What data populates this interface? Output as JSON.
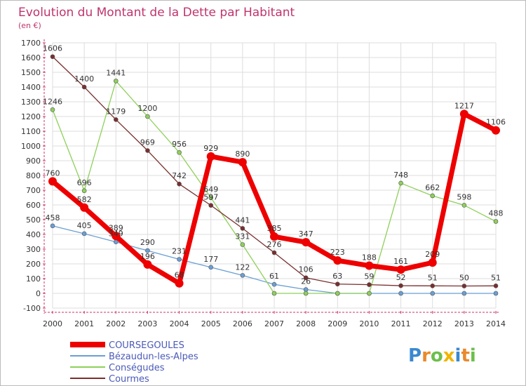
{
  "chart_data": {
    "type": "line",
    "title": "Evolution du Montant de la Dette par Habitant",
    "subtitle": "(en €)",
    "x": [
      "2000",
      "2001",
      "2002",
      "2003",
      "2004",
      "2005",
      "2006",
      "2007",
      "2008",
      "2009",
      "2010",
      "2011",
      "2012",
      "2013",
      "2014"
    ],
    "ylim": [
      -100,
      1700
    ],
    "yticks": [
      -100,
      0,
      100,
      200,
      300,
      400,
      500,
      600,
      700,
      800,
      900,
      1000,
      1100,
      1200,
      1300,
      1400,
      1500,
      1600,
      1700
    ],
    "grid": true,
    "legend_position": "bottom-left",
    "series": [
      {
        "name": "COURSEGOULES",
        "color": "#ee0000",
        "values": [
          760,
          582,
          389,
          196,
          68,
          929,
          890,
          385,
          347,
          223,
          188,
          161,
          209,
          1217,
          1106
        ]
      },
      {
        "name": "Bézaudun-les-Alpes",
        "color": "#6a9fd4",
        "values": [
          458,
          405,
          349,
          290,
          231,
          177,
          122,
          61,
          26,
          0,
          0,
          0,
          0,
          0,
          0
        ]
      },
      {
        "name": "Conségudes",
        "color": "#8ed05a",
        "values": [
          1246,
          696,
          1441,
          1200,
          956,
          649,
          331,
          0,
          0,
          0,
          0,
          748,
          662,
          598,
          488
        ]
      },
      {
        "name": "Courmes",
        "color": "#7a2e2e",
        "values": [
          1606,
          1400,
          1179,
          969,
          742,
          597,
          441,
          276,
          106,
          63,
          59,
          52,
          51,
          50,
          51
        ]
      }
    ],
    "data_labels": [
      {
        "series": 0,
        "labels": [
          "760",
          "582",
          "389",
          "196",
          "68",
          "929",
          "890",
          "385",
          "347",
          "223",
          "188",
          "161",
          "209",
          "1217",
          "1106"
        ]
      },
      {
        "series": 1,
        "labels": [
          "458",
          "405",
          "349",
          "290",
          "231",
          "177",
          "122",
          "61",
          "26",
          "",
          "",
          "",
          "",
          "",
          ""
        ]
      },
      {
        "series": 2,
        "labels": [
          "1246",
          "696",
          "1441",
          "1200",
          "956",
          "649",
          "331",
          "",
          "",
          "",
          "",
          "748",
          "662",
          "598",
          "488"
        ]
      },
      {
        "series": 3,
        "labels": [
          "1606",
          "1400",
          "1179",
          "969",
          "742",
          "597",
          "441",
          "276",
          "106",
          "63",
          "59",
          "52",
          "51",
          "50",
          "51"
        ]
      }
    ]
  },
  "brand": {
    "text": "Proxiti"
  }
}
